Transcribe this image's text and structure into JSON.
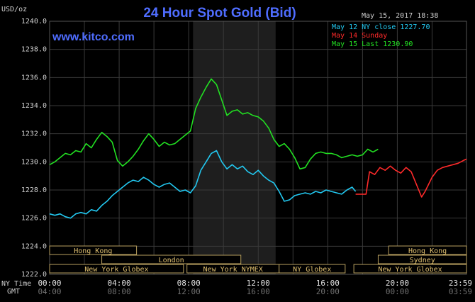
{
  "header": {
    "unit": "USD/oz",
    "title": "24 Hour Spot Gold (Bid)",
    "timestamp": "May 15, 2017 18:38",
    "watermark": "www.kitco.com"
  },
  "legend": [
    {
      "text": "May 12 NY close 1227.70",
      "color": "#22c8f0"
    },
    {
      "text": "May 14 Sunday",
      "color": "#ff2a2a"
    },
    {
      "text": "May 15 Last 1230.90",
      "color": "#22e022"
    }
  ],
  "colors": {
    "background": "#000000",
    "grid": "#3a3a3a",
    "highlight_band": "#1e1e1e",
    "title": "#4f6dff",
    "text": "#d0d0d0",
    "session_box_fill": "#000000",
    "session_box_stroke": "#b8a060",
    "session_text": "#e0c070"
  },
  "axis": {
    "row1_label": "NY Time",
    "row2_label": "GMT",
    "ny_ticks": [
      "00:00",
      "04:00",
      "08:00",
      "12:00",
      "16:00",
      "20:00",
      "23:59"
    ],
    "gmt_ticks": [
      "04:00",
      "08:00",
      "12:00",
      "16:00",
      "20:00",
      "00:00",
      "03:59"
    ]
  },
  "sessions": [
    {
      "label": "Hong Kong",
      "row": 0,
      "x_start_h": 0.0,
      "x_end_h": 5.0
    },
    {
      "label": "London",
      "row": 1,
      "x_start_h": 3.0,
      "x_end_h": 11.0
    },
    {
      "label": "New York Globex",
      "row": 2,
      "x_start_h": 0.0,
      "x_end_h": 7.7
    },
    {
      "label": "New York NYMEX",
      "row": 2,
      "x_start_h": 7.9,
      "x_end_h": 13.2
    },
    {
      "label": "NY Globex",
      "row": 2,
      "x_start_h": 13.2,
      "x_end_h": 17.0
    },
    {
      "label": "Hong Kong",
      "row": 0,
      "x_start_h": 19.5,
      "x_end_h": 23.98
    },
    {
      "label": "Sydney",
      "row": 1,
      "x_start_h": 18.9,
      "x_end_h": 23.98
    },
    {
      "label": "New York Globex",
      "row": 2,
      "x_start_h": 17.5,
      "x_end_h": 23.98
    }
  ],
  "chart_data": {
    "type": "line",
    "title": "24 Hour Spot Gold (Bid)",
    "ylabel": "USD/oz",
    "xlabel": "NY Time",
    "ylim": [
      1222.0,
      1240.0
    ],
    "yticks": [
      "1222.0",
      "1224.0",
      "1226.0",
      "1228.0",
      "1230.0",
      "1232.0",
      "1234.0",
      "1236.0",
      "1238.0",
      "1240.0"
    ],
    "xlim_hours": [
      0,
      23.98
    ],
    "highlight_hours": [
      8.25,
      13.0
    ],
    "grid": true,
    "legend_position": "top-right",
    "series": [
      {
        "name": "May 12 NY close 1227.70",
        "color": "#22c8f0",
        "points": [
          [
            0.0,
            1226.3
          ],
          [
            0.3,
            1226.2
          ],
          [
            0.6,
            1226.3
          ],
          [
            0.9,
            1226.1
          ],
          [
            1.2,
            1226.0
          ],
          [
            1.5,
            1226.3
          ],
          [
            1.8,
            1226.4
          ],
          [
            2.1,
            1226.3
          ],
          [
            2.4,
            1226.6
          ],
          [
            2.7,
            1226.5
          ],
          [
            3.0,
            1226.9
          ],
          [
            3.3,
            1227.2
          ],
          [
            3.6,
            1227.6
          ],
          [
            3.9,
            1227.9
          ],
          [
            4.2,
            1228.2
          ],
          [
            4.5,
            1228.5
          ],
          [
            4.8,
            1228.7
          ],
          [
            5.1,
            1228.6
          ],
          [
            5.4,
            1228.9
          ],
          [
            5.7,
            1228.7
          ],
          [
            6.0,
            1228.4
          ],
          [
            6.3,
            1228.2
          ],
          [
            6.6,
            1228.4
          ],
          [
            6.9,
            1228.5
          ],
          [
            7.2,
            1228.2
          ],
          [
            7.5,
            1227.9
          ],
          [
            7.8,
            1228.0
          ],
          [
            8.1,
            1227.8
          ],
          [
            8.4,
            1228.3
          ],
          [
            8.7,
            1229.4
          ],
          [
            9.0,
            1230.0
          ],
          [
            9.3,
            1230.6
          ],
          [
            9.6,
            1230.8
          ],
          [
            9.9,
            1230.0
          ],
          [
            10.2,
            1229.5
          ],
          [
            10.5,
            1229.8
          ],
          [
            10.8,
            1229.5
          ],
          [
            11.1,
            1229.7
          ],
          [
            11.4,
            1229.3
          ],
          [
            11.7,
            1229.1
          ],
          [
            12.0,
            1229.4
          ],
          [
            12.3,
            1229.0
          ],
          [
            12.6,
            1228.7
          ],
          [
            12.9,
            1228.5
          ],
          [
            13.2,
            1227.9
          ],
          [
            13.5,
            1227.2
          ],
          [
            13.8,
            1227.3
          ],
          [
            14.1,
            1227.6
          ],
          [
            14.4,
            1227.7
          ],
          [
            14.7,
            1227.8
          ],
          [
            15.0,
            1227.7
          ],
          [
            15.3,
            1227.9
          ],
          [
            15.6,
            1227.8
          ],
          [
            15.9,
            1228.0
          ],
          [
            16.2,
            1227.9
          ],
          [
            16.5,
            1227.8
          ],
          [
            16.8,
            1227.7
          ],
          [
            17.1,
            1228.0
          ],
          [
            17.4,
            1228.2
          ],
          [
            17.6,
            1227.9
          ]
        ]
      },
      {
        "name": "May 14 Sunday",
        "color": "#ff2a2a",
        "points": [
          [
            17.6,
            1227.7
          ],
          [
            18.0,
            1227.7
          ],
          [
            18.2,
            1227.7
          ],
          [
            18.4,
            1229.3
          ],
          [
            18.7,
            1229.1
          ],
          [
            19.0,
            1229.6
          ],
          [
            19.3,
            1229.4
          ],
          [
            19.6,
            1229.7
          ],
          [
            19.9,
            1229.4
          ],
          [
            20.2,
            1229.2
          ],
          [
            20.5,
            1229.6
          ],
          [
            20.8,
            1229.3
          ],
          [
            21.0,
            1228.7
          ],
          [
            21.2,
            1228.1
          ],
          [
            21.4,
            1227.5
          ],
          [
            21.6,
            1227.9
          ],
          [
            21.8,
            1228.4
          ],
          [
            22.0,
            1228.9
          ],
          [
            22.3,
            1229.4
          ],
          [
            22.6,
            1229.6
          ],
          [
            22.9,
            1229.7
          ],
          [
            23.2,
            1229.8
          ],
          [
            23.5,
            1229.9
          ],
          [
            23.8,
            1230.1
          ],
          [
            23.98,
            1230.2
          ]
        ]
      },
      {
        "name": "May 15 Last 1230.90",
        "color": "#22e022",
        "points": [
          [
            0.0,
            1229.8
          ],
          [
            0.3,
            1230.0
          ],
          [
            0.6,
            1230.3
          ],
          [
            0.9,
            1230.6
          ],
          [
            1.2,
            1230.5
          ],
          [
            1.5,
            1230.8
          ],
          [
            1.8,
            1230.7
          ],
          [
            2.1,
            1231.3
          ],
          [
            2.4,
            1231.0
          ],
          [
            2.7,
            1231.6
          ],
          [
            3.0,
            1232.1
          ],
          [
            3.3,
            1231.8
          ],
          [
            3.6,
            1231.4
          ],
          [
            3.9,
            1230.1
          ],
          [
            4.2,
            1229.7
          ],
          [
            4.5,
            1230.0
          ],
          [
            4.8,
            1230.4
          ],
          [
            5.1,
            1230.9
          ],
          [
            5.4,
            1231.5
          ],
          [
            5.7,
            1232.0
          ],
          [
            6.0,
            1231.6
          ],
          [
            6.3,
            1231.1
          ],
          [
            6.6,
            1231.4
          ],
          [
            6.9,
            1231.2
          ],
          [
            7.2,
            1231.3
          ],
          [
            7.5,
            1231.6
          ],
          [
            7.8,
            1231.9
          ],
          [
            8.1,
            1232.2
          ],
          [
            8.4,
            1233.8
          ],
          [
            8.7,
            1234.6
          ],
          [
            9.0,
            1235.3
          ],
          [
            9.3,
            1235.9
          ],
          [
            9.6,
            1235.5
          ],
          [
            9.9,
            1234.4
          ],
          [
            10.2,
            1233.3
          ],
          [
            10.5,
            1233.6
          ],
          [
            10.8,
            1233.7
          ],
          [
            11.1,
            1233.4
          ],
          [
            11.4,
            1233.5
          ],
          [
            11.7,
            1233.3
          ],
          [
            12.0,
            1233.2
          ],
          [
            12.3,
            1232.9
          ],
          [
            12.6,
            1232.4
          ],
          [
            12.9,
            1231.6
          ],
          [
            13.2,
            1231.1
          ],
          [
            13.5,
            1231.3
          ],
          [
            13.8,
            1230.9
          ],
          [
            14.1,
            1230.3
          ],
          [
            14.4,
            1229.5
          ],
          [
            14.7,
            1229.6
          ],
          [
            15.0,
            1230.2
          ],
          [
            15.3,
            1230.6
          ],
          [
            15.6,
            1230.7
          ],
          [
            15.9,
            1230.6
          ],
          [
            16.2,
            1230.6
          ],
          [
            16.5,
            1230.5
          ],
          [
            16.8,
            1230.3
          ],
          [
            17.1,
            1230.4
          ],
          [
            17.4,
            1230.5
          ],
          [
            17.7,
            1230.4
          ],
          [
            18.0,
            1230.5
          ],
          [
            18.3,
            1230.9
          ],
          [
            18.6,
            1230.7
          ],
          [
            18.9,
            1230.9
          ]
        ]
      }
    ]
  }
}
